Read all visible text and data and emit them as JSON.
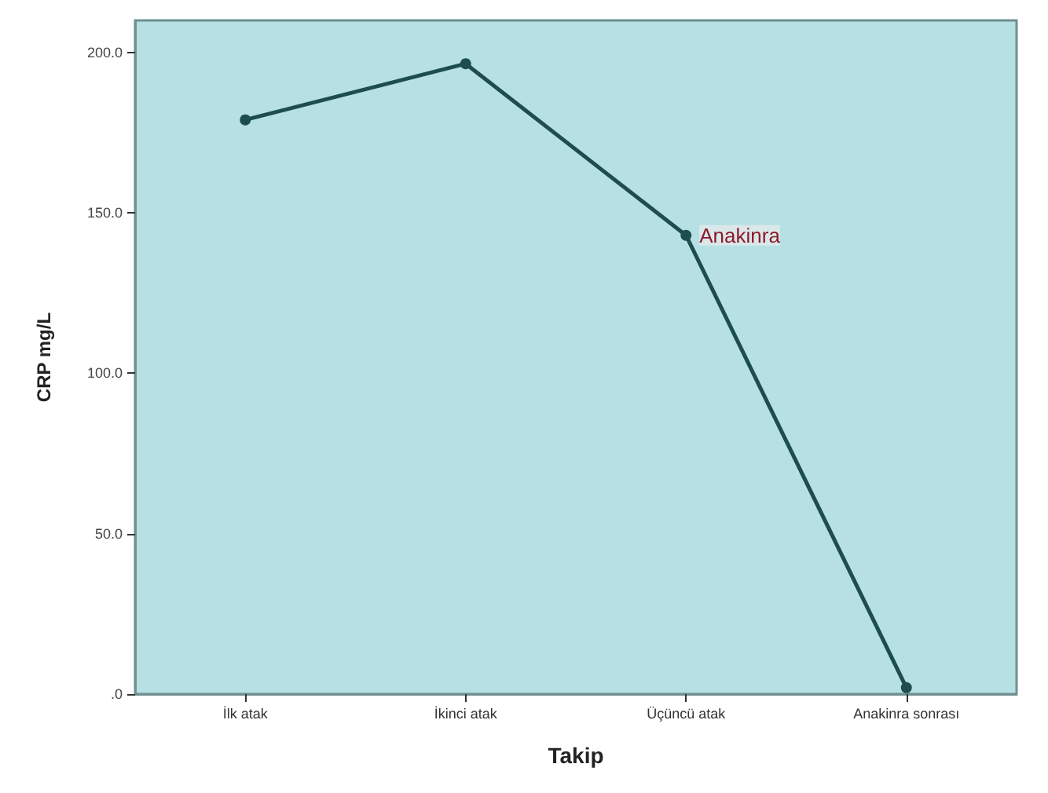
{
  "chart_data": {
    "type": "line",
    "xlabel": "Takip",
    "ylabel": "CRP mg/L",
    "categories": [
      "İlk atak",
      "İkinci atak",
      "Üçüncü atak",
      "Anakinra sonrası"
    ],
    "series": [
      {
        "name": "Anakinra",
        "color": "#1e4d4f",
        "values": [
          179,
          196.5,
          143,
          2
        ]
      }
    ],
    "ylim": [
      0,
      210
    ],
    "yticks": [
      {
        "value": 0,
        "label": ".0"
      },
      {
        "value": 50,
        "label": "50.0"
      },
      {
        "value": 100,
        "label": "100.0"
      },
      {
        "value": 150,
        "label": "150.0"
      },
      {
        "value": 200,
        "label": "200.0"
      }
    ],
    "grid": false,
    "legend": false,
    "marker": "circle",
    "line_style": "solid"
  }
}
